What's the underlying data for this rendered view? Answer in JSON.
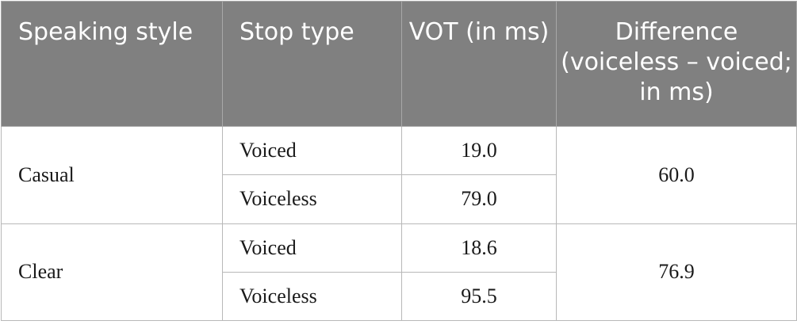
{
  "table": {
    "headers": [
      "Speaking style",
      "Stop type",
      "VOT (in ms)",
      "Difference (voiceless – voiced; in ms)"
    ],
    "groups": [
      {
        "style": "Casual",
        "rows": [
          {
            "type": "Voiced",
            "vot": "19.0"
          },
          {
            "type": "Voiceless",
            "vot": "79.0"
          }
        ],
        "difference": "60.0"
      },
      {
        "style": "Clear",
        "rows": [
          {
            "type": "Voiced",
            "vot": "18.6"
          },
          {
            "type": "Voiceless",
            "vot": "95.5"
          }
        ],
        "difference": "76.9"
      }
    ]
  }
}
